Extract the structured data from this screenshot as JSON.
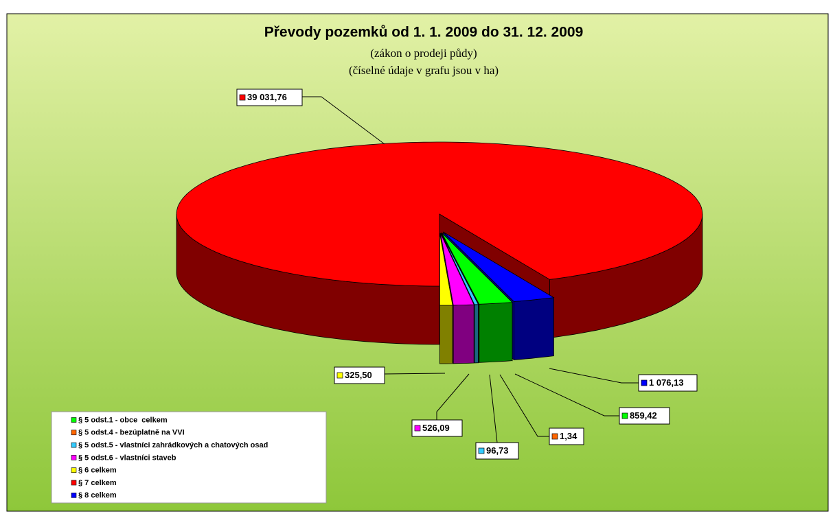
{
  "chart_data": {
    "type": "pie3d",
    "title": "Převody pozemků od 1. 1. 2009 do 31. 12. 2009",
    "subtitle": [
      "(zákon o prodeji půdy)",
      "(číselné údaje v grafu jsou v ha)"
    ],
    "categories": [
      "§ 5 odst.1 - obce  celkem",
      "§ 5 odst.4 - bezúplatně na VVI",
      "§ 5 odst.5 - vlastníci zahrádkových a chatových osad",
      "§ 5 odst.6 - vlastníci staveb",
      "§ 6 celkem",
      "§ 7 celkem",
      "§ 8 celkem"
    ],
    "values": [
      859.42,
      1.34,
      96.73,
      526.09,
      325.5,
      39031.76,
      1076.13
    ],
    "value_labels": [
      "859,42",
      "1,34",
      "96,73",
      "526,09",
      "325,50",
      "39 031,76",
      "1 076,13"
    ],
    "colors": [
      "#00ff00",
      "#ff6600",
      "#33ccff",
      "#ff00ff",
      "#ffff00",
      "#ff0000",
      "#0000ff"
    ],
    "legend": "bottom-left"
  }
}
